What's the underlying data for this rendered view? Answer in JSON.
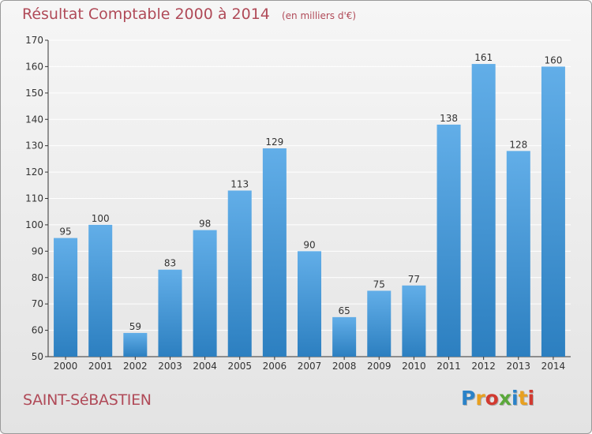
{
  "title": "Résultat Comptable 2000 à 2014",
  "unit": "(en milliers d'€)",
  "town": "SAINT-SéBASTIEN",
  "logo": {
    "text": "Proxiti",
    "colors": [
      "#2a82c8",
      "#e8a020",
      "#d23a30",
      "#5aa83a",
      "#2a82c8",
      "#e8a020",
      "#d23a30"
    ]
  },
  "colors": {
    "bar_light": "#62aee8",
    "bar_dark": "#2c7fc0",
    "title": "#b04a58",
    "grid": "#ffffff"
  },
  "chart_data": {
    "type": "bar",
    "title": "Résultat Comptable 2000 à 2014",
    "xlabel": "",
    "ylabel": "",
    "categories": [
      "2000",
      "2001",
      "2002",
      "2003",
      "2004",
      "2005",
      "2006",
      "2007",
      "2008",
      "2009",
      "2010",
      "2011",
      "2012",
      "2013",
      "2014"
    ],
    "values": [
      95,
      100,
      59,
      83,
      98,
      113,
      129,
      90,
      65,
      75,
      77,
      138,
      161,
      128,
      160
    ],
    "ylim": [
      50,
      170
    ],
    "yticks": [
      50,
      60,
      70,
      80,
      90,
      100,
      110,
      120,
      130,
      140,
      150,
      160,
      170
    ],
    "grid": true,
    "data_labels": true
  }
}
